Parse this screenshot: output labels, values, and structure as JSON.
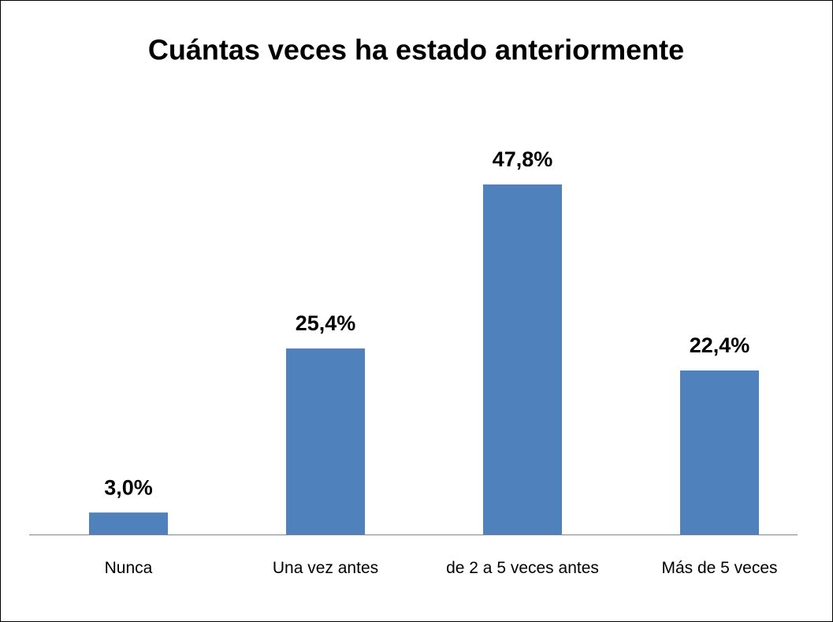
{
  "chart_data": {
    "type": "bar",
    "title": "Cuántas veces ha estado anteriormente",
    "categories": [
      "Nunca",
      "Una vez antes",
      "de 2 a 5 veces antes",
      "Más de 5 veces"
    ],
    "values": [
      3.0,
      25.4,
      47.8,
      22.4
    ],
    "value_labels": [
      "3,0%",
      "25,4%",
      "47,8%",
      "22,4%"
    ],
    "color": "#4f81bd"
  }
}
